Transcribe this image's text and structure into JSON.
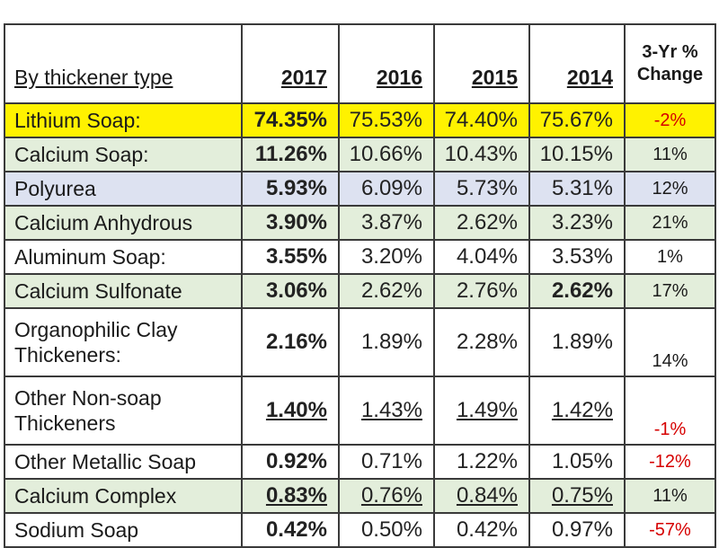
{
  "table": {
    "header": {
      "type_label": "By thickener type",
      "years": [
        "2017",
        "2016",
        "2015",
        "2014"
      ],
      "change_label": "3-Yr % Change"
    },
    "colors": {
      "highlight_yellow": "#fff200",
      "green_tint": "#e3eedb",
      "blue_tint": "#dde2f1",
      "white": "#ffffff",
      "negative_red": "#d60000"
    },
    "rows": [
      {
        "name": "Lithium Soap:",
        "v2017": "74.35%",
        "v2016": "75.53%",
        "v2015": "74.40%",
        "v2014": "75.67%",
        "change": "-2%"
      },
      {
        "name": "Calcium Soap:",
        "v2017": "11.26%",
        "v2016": "10.66%",
        "v2015": "10.43%",
        "v2014": "10.15%",
        "change": "11%"
      },
      {
        "name": "Polyurea",
        "v2017": "5.93%",
        "v2016": "6.09%",
        "v2015": "5.73%",
        "v2014": "5.31%",
        "change": "12%"
      },
      {
        "name": "Calcium Anhydrous",
        "v2017": "3.90%",
        "v2016": "3.87%",
        "v2015": "2.62%",
        "v2014": "3.23%",
        "change": "21%"
      },
      {
        "name": "Aluminum Soap:",
        "v2017": "3.55%",
        "v2016": "3.20%",
        "v2015": "4.04%",
        "v2014": "3.53%",
        "change": "1%"
      },
      {
        "name": "Calcium Sulfonate",
        "v2017": "3.06%",
        "v2016": "2.62%",
        "v2015": "2.76%",
        "v2014": "2.62%",
        "change": "17%"
      },
      {
        "name": "Organophilic Clay Thickeners:",
        "v2017": "2.16%",
        "v2016": "1.89%",
        "v2015": "2.28%",
        "v2014": "1.89%",
        "change": "14%"
      },
      {
        "name": "Other Non-soap Thickeners",
        "v2017": "1.40%",
        "v2016": "1.43%",
        "v2015": "1.49%",
        "v2014": "1.42%",
        "change": "-1%"
      },
      {
        "name": "Other Metallic Soap",
        "v2017": "0.92%",
        "v2016": "0.71%",
        "v2015": "1.22%",
        "v2014": "1.05%",
        "change": "-12%"
      },
      {
        "name": "Calcium Complex",
        "v2017": "0.83%",
        "v2016": "0.76%",
        "v2015": "0.84%",
        "v2014": "0.75%",
        "change": "11%"
      },
      {
        "name": "Sodium Soap",
        "v2017": "0.42%",
        "v2016": "0.50%",
        "v2015": "0.42%",
        "v2014": "0.97%",
        "change": "-57%"
      }
    ]
  }
}
